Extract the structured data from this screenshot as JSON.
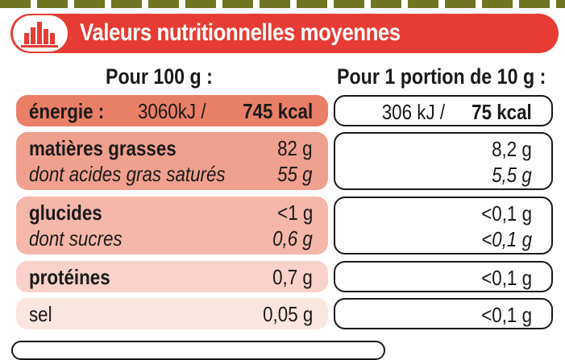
{
  "header": {
    "title": "Valeurs nutritionnelles moyennes",
    "icon": "bar-chart-icon"
  },
  "columns": {
    "per_100g": "Pour 100 g :",
    "per_portion": "Pour 1 portion de 10 g :"
  },
  "rows": {
    "energie": {
      "label": "énergie :",
      "left_value_kj": "3060kJ /",
      "left_value_kcal": "745 kcal",
      "right_value_kj": "306 kJ /",
      "right_value_kcal": "75 kcal"
    },
    "matieres": {
      "label": "matières grasses",
      "left_value": "82 g",
      "right_value": "8,2 g",
      "sub_label": "dont acides gras saturés",
      "sub_left": "55 g",
      "sub_right": "5,5 g"
    },
    "glucides": {
      "label": "glucides",
      "left_value": "<1 g",
      "right_value": "<0,1 g",
      "sub_label": "dont sucres",
      "sub_left": "0,6 g",
      "sub_right": "<0,1 g"
    },
    "proteines": {
      "label": "protéines",
      "left_value": "0,7 g",
      "right_value": "<0,1 g"
    },
    "sel": {
      "label": "sel",
      "left_value": "0,05 g",
      "right_value": "<0,1 g"
    }
  },
  "colors": {
    "red": "#e63c35",
    "energy_bg": "#ea7f67",
    "fat_bg": "#f0a08f",
    "carb_bg": "#f4b7a9",
    "protein_bg": "#f8d2c9",
    "salt_bg": "#fbe5df",
    "olive": "#6f7521"
  }
}
